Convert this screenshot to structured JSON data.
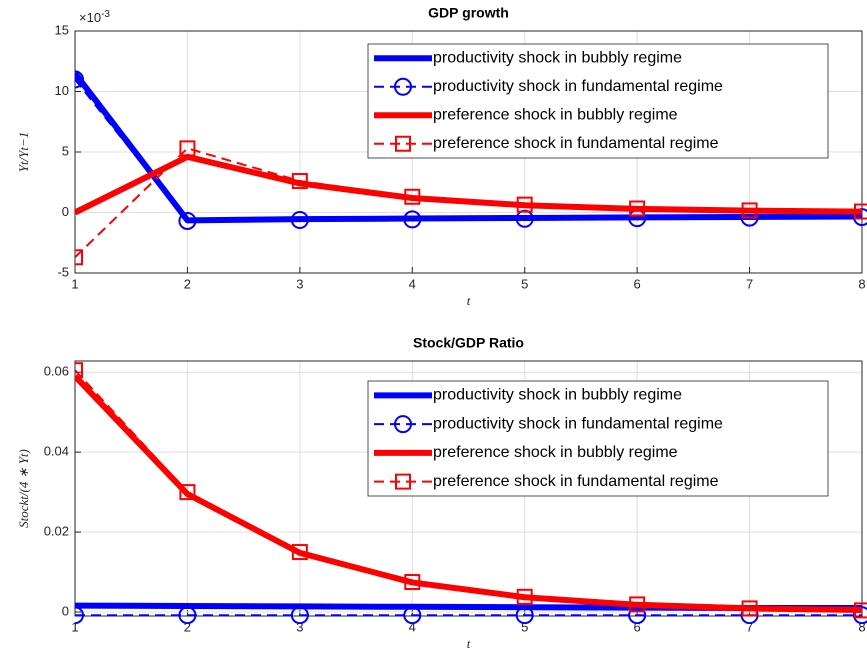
{
  "chart_data": [
    {
      "type": "line",
      "title": "GDP growth",
      "xlabel": "t",
      "ylabel": "Yt/Yt−1",
      "y_exponent_base": "×10",
      "y_exponent": "-3",
      "x": [
        1,
        2,
        3,
        4,
        5,
        6,
        7,
        8
      ],
      "xlim": [
        1,
        8
      ],
      "xticks": [
        1,
        2,
        3,
        4,
        5,
        6,
        7,
        8
      ],
      "ylim": [
        -5,
        15
      ],
      "yticks": [
        -5,
        0,
        5,
        10,
        15
      ],
      "grid": true,
      "legend": "upper right",
      "series": [
        {
          "name": "productivity shock in bubbly regime",
          "color": "#0000ff",
          "line": "solid",
          "marker": "none",
          "values": [
            11.5,
            -0.65,
            -0.55,
            -0.5,
            -0.45,
            -0.4,
            -0.37,
            -0.33
          ]
        },
        {
          "name": "productivity shock in fundamental regime",
          "color": "#0000ff",
          "line": "dashed",
          "marker": "circle",
          "values": [
            11.0,
            -0.7,
            -0.62,
            -0.57,
            -0.52,
            -0.47,
            -0.42,
            -0.38
          ]
        },
        {
          "name": "preference shock in bubbly regime",
          "color": "#ff0000",
          "line": "solid",
          "marker": "none",
          "values": [
            0,
            4.6,
            2.4,
            1.2,
            0.6,
            0.3,
            0.15,
            0.07
          ]
        },
        {
          "name": "preference shock in fundamental regime",
          "color": "#ff0000",
          "line": "dashed",
          "marker": "square",
          "values": [
            -3.7,
            5.3,
            2.6,
            1.3,
            0.65,
            0.33,
            0.17,
            0.08
          ]
        }
      ]
    },
    {
      "type": "line",
      "title": "Stock/GDP Ratio",
      "xlabel": "t",
      "ylabel": "Stockt/(4 ∗ Yt)",
      "x": [
        1,
        2,
        3,
        4,
        5,
        6,
        7,
        8
      ],
      "xlim": [
        1,
        8
      ],
      "xticks": [
        1,
        2,
        3,
        4,
        5,
        6,
        7,
        8
      ],
      "ylim": [
        -0.001,
        0.0628
      ],
      "yticks": [
        0,
        0.02,
        0.04,
        0.06
      ],
      "grid": true,
      "legend": "upper right",
      "series": [
        {
          "name": "productivity shock in bubbly regime",
          "color": "#0000ff",
          "line": "solid",
          "marker": "none",
          "values": [
            0.0016,
            0.0015,
            0.0014,
            0.0013,
            0.0012,
            0.0011,
            0.001,
            0.001
          ]
        },
        {
          "name": "productivity shock in fundamental regime",
          "color": "#0000ff",
          "line": "dashed",
          "marker": "circle",
          "values": [
            -0.0008,
            -0.0008,
            -0.0008,
            -0.0008,
            -0.0008,
            -0.0008,
            -0.0008,
            -0.0008
          ]
        },
        {
          "name": "preference shock in bubbly regime",
          "color": "#ff0000",
          "line": "solid",
          "marker": "none",
          "values": [
            0.059,
            0.0295,
            0.0148,
            0.0074,
            0.0037,
            0.0018,
            0.0009,
            0.0005
          ]
        },
        {
          "name": "preference shock in fundamental regime",
          "color": "#ff0000",
          "line": "dashed",
          "marker": "square",
          "values": [
            0.0605,
            0.03,
            0.015,
            0.0075,
            0.0038,
            0.0019,
            0.0009,
            0.0004
          ]
        }
      ]
    }
  ]
}
